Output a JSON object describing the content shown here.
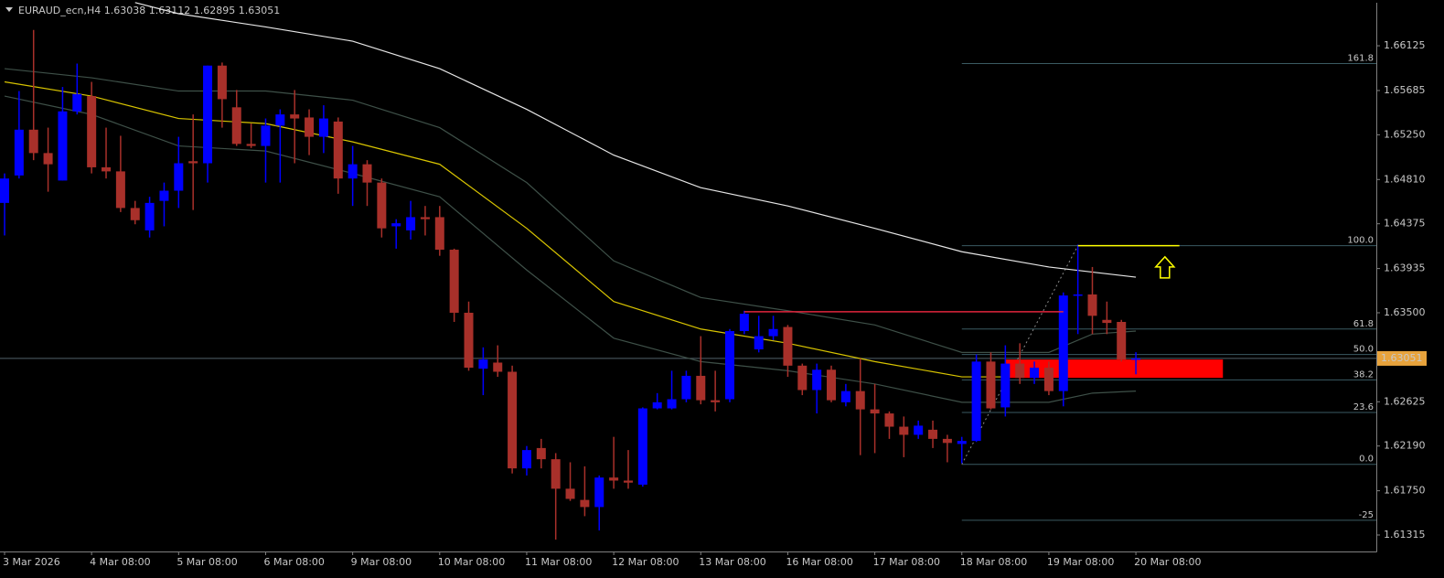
{
  "chart_data": {
    "type": "candlestick",
    "title": "EURAUD_ecn,H4  1.63038 1.63112 1.62895 1.63051",
    "categories": [
      "3 Mar 2026",
      null,
      null,
      null,
      null,
      null,
      "4 Mar 08:00",
      null,
      null,
      null,
      null,
      null,
      "5 Mar 08:00",
      null,
      null,
      null,
      null,
      null,
      "6 Mar 08:00",
      null,
      null,
      null,
      null,
      null,
      "9 Mar 08:00",
      null,
      null,
      null,
      null,
      null,
      "10 Mar 08:00",
      null,
      null,
      null,
      null,
      null,
      "11 Mar 08:00",
      null,
      null,
      null,
      null,
      null,
      "12 Mar 08:00",
      null,
      null,
      null,
      null,
      null,
      "13 Mar 08:00",
      null,
      null,
      null,
      null,
      null,
      "16 Mar 08:00",
      null,
      null,
      null,
      null,
      null,
      "17 Mar 08:00",
      null,
      null,
      null,
      null,
      null,
      "18 Mar 08:00",
      null,
      null,
      null,
      null,
      null,
      "19 Mar 08:00",
      null,
      null,
      null,
      null,
      null,
      "20 Mar 08:00"
    ],
    "open": [
      1.6458,
      1.6485,
      1.653,
      1.6507,
      1.648,
      1.6548,
      1.6563,
      1.6493,
      1.6489,
      1.6453,
      1.6431,
      1.646,
      1.647,
      1.6499,
      1.6497,
      1.6593,
      1.6552,
      1.6516,
      1.6514,
      1.6534,
      1.6545,
      1.6542,
      1.6523,
      1.6538,
      1.6482,
      1.6496,
      1.6478,
      1.6435,
      1.6431,
      1.6444,
      1.6444,
      1.6412,
      1.635,
      1.6295,
      1.6301,
      1.6292,
      1.6197,
      1.6217,
      1.6206,
      1.6177,
      1.6166,
      1.6159,
      1.6188,
      1.6185,
      1.6181,
      1.6256,
      1.6256,
      1.6265,
      1.6288,
      1.6264,
      1.6265,
      1.6332,
      1.6314,
      1.6327,
      1.6336,
      1.6298,
      1.6274,
      1.6294,
      1.6262,
      1.6273,
      1.6255,
      1.6251,
      1.6238,
      1.623,
      1.6235,
      1.6226,
      1.6221,
      1.6224,
      1.6302,
      1.6257,
      1.63,
      1.6286,
      1.6296,
      1.6273,
      1.6367,
      1.6368,
      1.6343,
      1.6341,
      1.63038
    ],
    "high": [
      1.6487,
      1.6568,
      1.6628,
      1.6532,
      1.6572,
      1.6595,
      1.6577,
      1.6532,
      1.6524,
      1.646,
      1.6464,
      1.6478,
      1.6523,
      1.6545,
      1.6593,
      1.6596,
      1.6569,
      1.6536,
      1.6541,
      1.655,
      1.6569,
      1.655,
      1.6554,
      1.6542,
      1.6514,
      1.65,
      1.6482,
      1.6442,
      1.646,
      1.6455,
      1.6455,
      1.6413,
      1.6361,
      1.6316,
      1.6318,
      1.6298,
      1.6219,
      1.6226,
      1.6212,
      1.6203,
      1.6199,
      1.619,
      1.6228,
      1.6215,
      1.6257,
      1.6271,
      1.6293,
      1.6293,
      1.6327,
      1.6293,
      1.6334,
      1.6352,
      1.6347,
      1.6347,
      1.6338,
      1.63,
      1.63,
      1.6298,
      1.628,
      1.6305,
      1.628,
      1.6253,
      1.6248,
      1.6244,
      1.6244,
      1.623,
      1.6228,
      1.6309,
      1.6311,
      1.6318,
      1.632,
      1.6302,
      1.6302,
      1.637,
      1.6417,
      1.6395,
      1.6361,
      1.6343,
      1.63112
    ],
    "low": [
      1.6426,
      1.6482,
      1.65,
      1.6469,
      1.648,
      1.6545,
      1.6487,
      1.6482,
      1.6449,
      1.6437,
      1.6424,
      1.6435,
      1.6453,
      1.6451,
      1.6478,
      1.6532,
      1.6514,
      1.6512,
      1.6478,
      1.6478,
      1.6497,
      1.6505,
      1.6507,
      1.6467,
      1.6455,
      1.6455,
      1.6424,
      1.6413,
      1.6422,
      1.6426,
      1.6406,
      1.6341,
      1.6293,
      1.6269,
      1.6287,
      1.6192,
      1.619,
      1.6197,
      1.6127,
      1.6165,
      1.615,
      1.6136,
      1.6177,
      1.6177,
      1.6179,
      1.6255,
      1.6255,
      1.6262,
      1.626,
      1.6253,
      1.6262,
      1.6329,
      1.6311,
      1.6323,
      1.6287,
      1.6269,
      1.6251,
      1.6262,
      1.6258,
      1.621,
      1.6212,
      1.6226,
      1.6208,
      1.6226,
      1.6217,
      1.6203,
      1.6202,
      1.6223,
      1.6255,
      1.6248,
      1.628,
      1.628,
      1.6269,
      1.6258,
      1.6329,
      1.6329,
      1.6329,
      1.6302,
      1.62895
    ],
    "close": [
      1.6482,
      1.653,
      1.6507,
      1.6496,
      1.6548,
      1.6565,
      1.6493,
      1.6489,
      1.6453,
      1.6441,
      1.6458,
      1.647,
      1.6497,
      1.6497,
      1.6593,
      1.656,
      1.6516,
      1.6514,
      1.6534,
      1.6545,
      1.6541,
      1.6523,
      1.6541,
      1.6482,
      1.6496,
      1.6478,
      1.6433,
      1.6438,
      1.6444,
      1.6442,
      1.6412,
      1.635,
      1.6296,
      1.6304,
      1.6292,
      1.6197,
      1.6215,
      1.6206,
      1.6177,
      1.6167,
      1.6159,
      1.6188,
      1.6185,
      1.6183,
      1.6256,
      1.6262,
      1.6265,
      1.6288,
      1.6264,
      1.6262,
      1.6332,
      1.6349,
      1.6327,
      1.6334,
      1.6298,
      1.6274,
      1.6294,
      1.6264,
      1.6273,
      1.6255,
      1.6251,
      1.6238,
      1.623,
      1.6239,
      1.6226,
      1.6222,
      1.6224,
      1.6302,
      1.6256,
      1.63,
      1.6286,
      1.6296,
      1.6273,
      1.6367,
      1.6368,
      1.6347,
      1.634,
      1.6304,
      1.63051
    ],
    "up_color": "#0000ff",
    "down_color": "#a8302a",
    "ylim": [
      1.61153,
      1.66548
    ],
    "yticks": [
      1.66125,
      1.65685,
      {
        "value": 1.6525,
        "label": "1.65250"
      },
      {
        "value": 1.6481,
        "label": "1.64810"
      },
      1.64375,
      1.63935,
      {
        "value": 1.635,
        "label": "1.63500"
      },
      1.62625,
      {
        "value": 1.6219,
        "label": "1.62190"
      },
      {
        "value": 1.6175,
        "label": "1.61750"
      },
      1.61315
    ],
    "bid": 1.63051,
    "indicators": [
      {
        "color": "#3e5048",
        "x": [
          0,
          6,
          12,
          18,
          24,
          30,
          36,
          42,
          48,
          54,
          60,
          66,
          72,
          75,
          78
        ],
        "values": [
          1.659,
          1.6581,
          1.6568,
          1.6568,
          1.6559,
          1.6532,
          1.6478,
          1.6401,
          1.6365,
          1.6352,
          1.6338,
          1.6311,
          1.6311,
          1.6329,
          1.6332
        ]
      },
      {
        "color": "#3e5048",
        "x": [
          0,
          6,
          12,
          18,
          24,
          30,
          36,
          42,
          48,
          54,
          60,
          66,
          72,
          75,
          78
        ],
        "values": [
          1.6563,
          1.6545,
          1.6514,
          1.6509,
          1.6487,
          1.6464,
          1.6392,
          1.6325,
          1.6302,
          1.6293,
          1.628,
          1.6262,
          1.6262,
          1.6271,
          1.6273
        ]
      },
      {
        "color": "#d8c400",
        "x": [
          0,
          6,
          12,
          18,
          24,
          30,
          36,
          42,
          48,
          54,
          60,
          66,
          72,
          75,
          78
        ],
        "values": [
          1.6577,
          1.6563,
          1.6541,
          1.6536,
          1.6518,
          1.6496,
          1.6433,
          1.6361,
          1.6334,
          1.632,
          1.6302,
          1.6287,
          1.6287,
          1.6298,
          1.6301
        ]
      },
      {
        "color": "#e6e6e6",
        "x": [
          9,
          12,
          18,
          24,
          30,
          36,
          42,
          48,
          54,
          60,
          66,
          72,
          78
        ],
        "values": [
          1.6655,
          1.6644,
          1.6631,
          1.6617,
          1.659,
          1.655,
          1.6505,
          1.6473,
          1.6455,
          1.6433,
          1.641,
          1.6395,
          1.6385
        ]
      }
    ],
    "fibo": {
      "x": 66,
      "color": "#3a5a62",
      "trend_x": [
        66,
        74
      ],
      "trend_prices": [
        1.6201,
        1.6416
      ],
      "levels": [
        {
          "label": "161.8",
          "price": 1.6595
        },
        {
          "label": "100.0",
          "price": 1.6416
        },
        {
          "label": "61.8",
          "price": 1.6334
        },
        {
          "label": "50.0",
          "price": 1.6309
        },
        {
          "label": "38.2",
          "price": 1.6284
        },
        {
          "label": "23.6",
          "price": 1.6252
        },
        {
          "label": "0.0",
          "price": 1.6201
        },
        {
          "label": "-25",
          "price": 1.6146
        }
      ]
    },
    "zone": {
      "x": [
        69,
        84
      ],
      "prices": [
        1.6304,
        1.6286
      ],
      "color": "#ff0000"
    },
    "level_line": {
      "x": [
        51,
        73
      ],
      "price": 1.6351,
      "color": "#e0243c"
    },
    "high_line": {
      "x": [
        74,
        81
      ],
      "price": 1.6416,
      "color": "#ffff00"
    },
    "arrow": {
      "x": 80,
      "price": 1.6405,
      "color": "#ffff00"
    }
  }
}
